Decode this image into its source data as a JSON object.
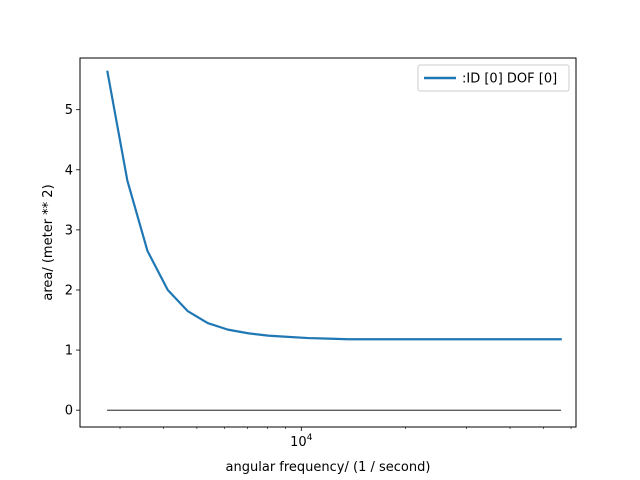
{
  "chart_data": {
    "type": "line",
    "xscale": "log",
    "xlabel": "angular frequency/ (1 / second)",
    "ylabel": "area/ (meter ** 2)",
    "xlim": [
      2300,
      62000
    ],
    "ylim": [
      -0.28,
      5.86
    ],
    "yticks": [
      0,
      1,
      2,
      3,
      4,
      5
    ],
    "xticks_major": [
      10000
    ],
    "xtick_major_labels": [
      "10^4"
    ],
    "grid": false,
    "legend_position": "upper right",
    "series": [
      {
        "name": ":ID [0] DOF [0]",
        "color": "#1f77b4",
        "x": [
          2760,
          3150,
          3600,
          4120,
          4700,
          5370,
          6140,
          7020,
          8020,
          9160,
          10470,
          11960,
          13670,
          15620,
          17860,
          20410,
          23320,
          26650,
          30460,
          34810,
          39780,
          45460,
          51960,
          56000
        ],
        "y": [
          5.63,
          3.82,
          2.65,
          2.0,
          1.65,
          1.45,
          1.34,
          1.28,
          1.24,
          1.22,
          1.2,
          1.19,
          1.18,
          1.18,
          1.18,
          1.18,
          1.18,
          1.18,
          1.18,
          1.18,
          1.18,
          1.18,
          1.18,
          1.18
        ]
      },
      {
        "name": "",
        "color": "#000000",
        "x": [
          2760,
          56000
        ],
        "y": [
          0,
          0
        ]
      }
    ]
  }
}
